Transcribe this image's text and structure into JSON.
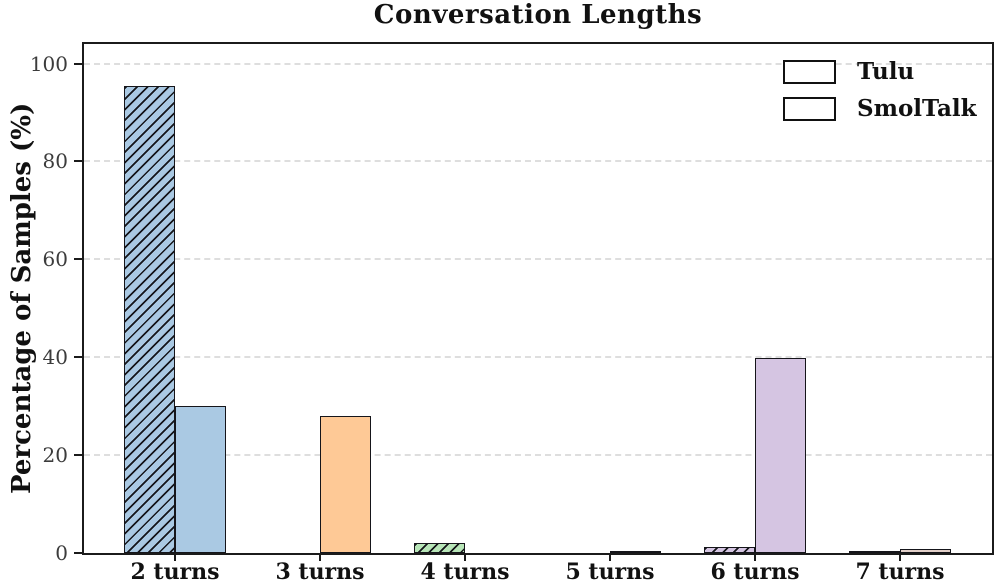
{
  "chart_data": {
    "type": "bar",
    "title": "Conversation Lengths",
    "ylabel": "Percentage of Samples (%)",
    "xlabel": "",
    "categories": [
      "2 turns",
      "3 turns",
      "4 turns",
      "5 turns",
      "6 turns",
      "7 turns"
    ],
    "series": [
      {
        "name": "Tulu",
        "hatch": "///",
        "values": [
          95.5,
          0,
          2,
          0.1,
          1.2,
          0.2
        ]
      },
      {
        "name": "SmolTalk",
        "hatch": "",
        "values": [
          30,
          28,
          0,
          0.5,
          39.8,
          0.8
        ]
      }
    ],
    "category_colors": [
      "#aac9e3",
      "#fec996",
      "#b8e6b8",
      "#f2aaa6",
      "#d5c5e2",
      "#e2cfc8"
    ],
    "bar_edge_color": "#15151a",
    "yticks": [
      0,
      20,
      40,
      60,
      80,
      100
    ],
    "ylim": [
      0,
      104
    ],
    "grid": "horizontal-dashed",
    "gridline_color": "#dedede",
    "legend": {
      "position": "upper-right"
    }
  }
}
